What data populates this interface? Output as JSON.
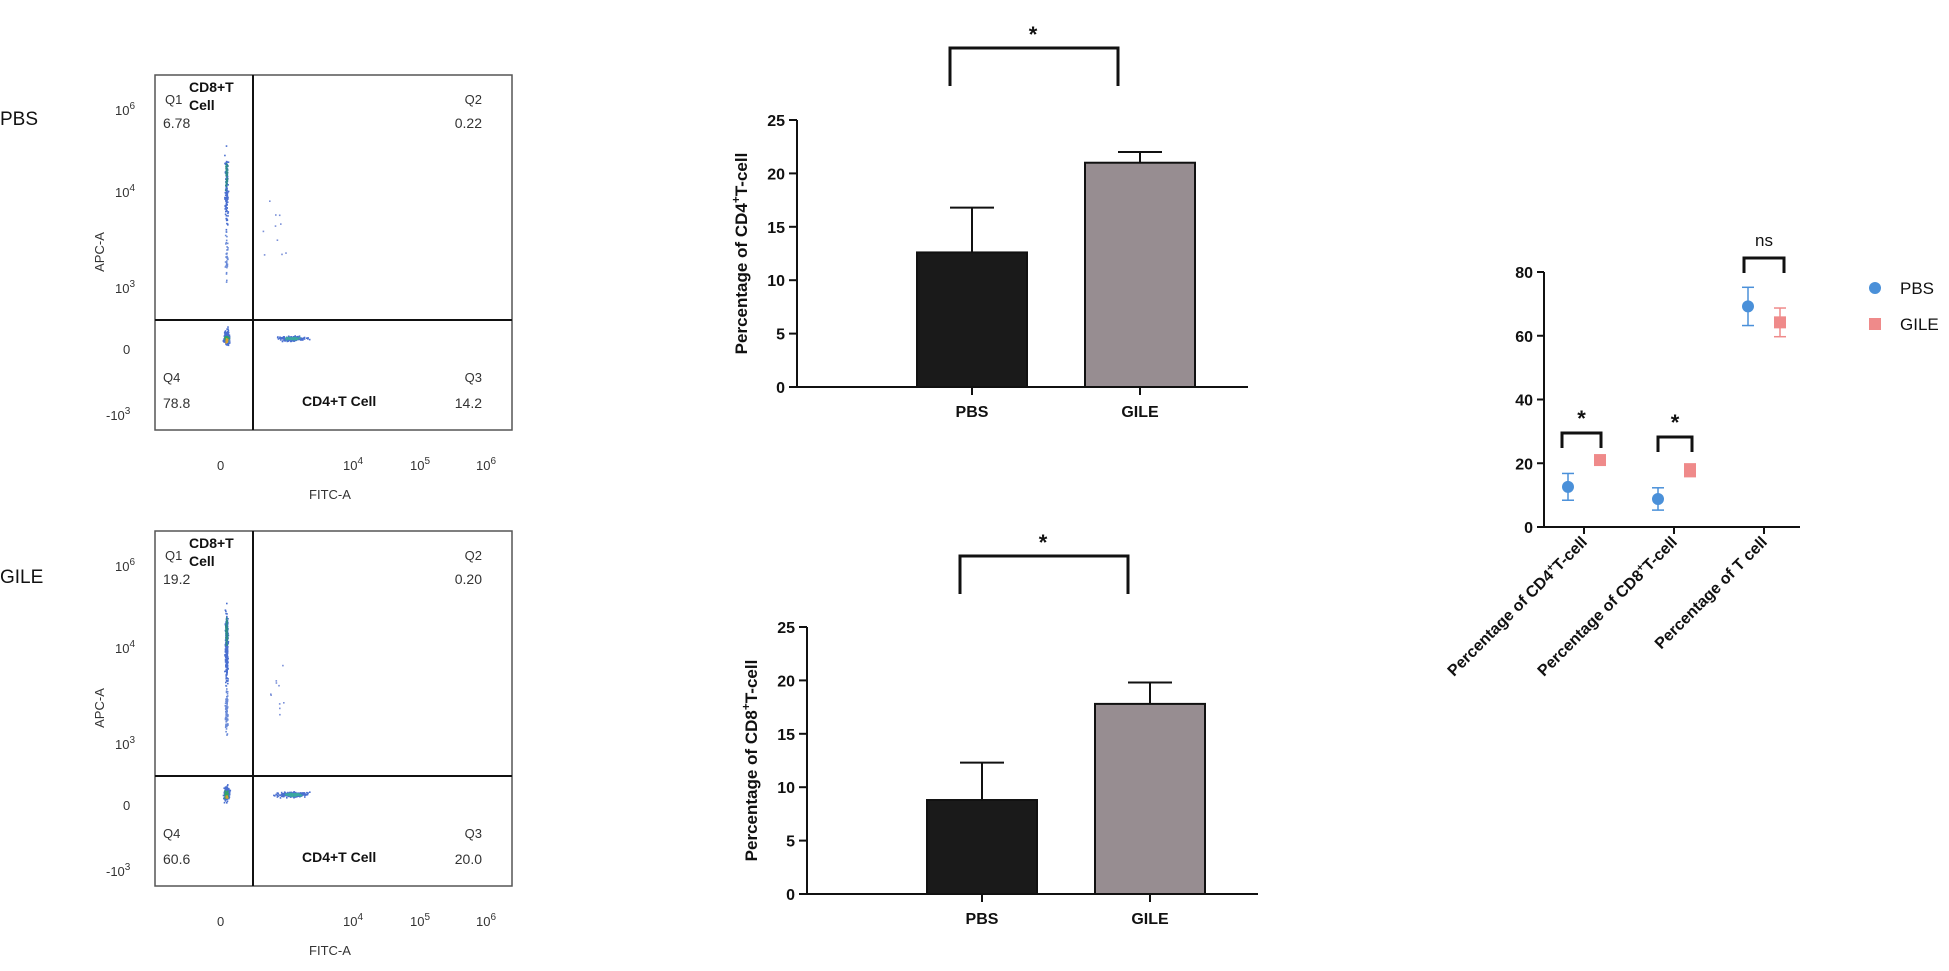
{
  "row_labels": [
    "PBS",
    "GILE"
  ],
  "flow_cytometry": [
    {
      "group": "PBS",
      "xlabel": "FITC-A",
      "ylabel": "APC-A",
      "quadrants": [
        {
          "id": "Q1",
          "value": "6.78",
          "population": "CD8+T Cell"
        },
        {
          "id": "Q2",
          "value": "0.22",
          "population": ""
        },
        {
          "id": "Q3",
          "value": "14.2",
          "population": "CD4+T Cell"
        },
        {
          "id": "Q4",
          "value": "78.8",
          "population": ""
        }
      ]
    },
    {
      "group": "GILE",
      "xlabel": "FITC-A",
      "ylabel": "APC-A",
      "quadrants": [
        {
          "id": "Q1",
          "value": "19.2",
          "population": "CD8+T Cell"
        },
        {
          "id": "Q2",
          "value": "0.20",
          "population": ""
        },
        {
          "id": "Q3",
          "value": "20.0",
          "population": "CD4+T Cell"
        },
        {
          "id": "Q4",
          "value": "60.6",
          "population": ""
        }
      ]
    }
  ],
  "chart_data": [
    {
      "type": "bar",
      "title": "",
      "categories": [
        "PBS",
        "GILE"
      ],
      "values": [
        12.6,
        21.0
      ],
      "errors": [
        4.2,
        1.0
      ],
      "ylabel": "Percentage of CD4+T-cell",
      "ylim": [
        0,
        25
      ],
      "yticks": [
        0,
        5,
        10,
        15,
        20,
        25
      ],
      "significance": "*",
      "colors": [
        "#1a1a1a",
        "#978d91"
      ]
    },
    {
      "type": "bar",
      "title": "",
      "categories": [
        "PBS",
        "GILE"
      ],
      "values": [
        8.8,
        17.8
      ],
      "errors": [
        3.5,
        2.0
      ],
      "ylabel": "Percentage of CD8+T-cell",
      "ylim": [
        0,
        25
      ],
      "yticks": [
        0,
        5,
        10,
        15,
        20,
        25
      ],
      "significance": "*",
      "colors": [
        "#1a1a1a",
        "#978d91"
      ]
    },
    {
      "type": "scatter",
      "title": "",
      "categories": [
        "Percentage of CD4+T-cell",
        "Percentage of CD8+T-cell",
        "Percentage of T cell"
      ],
      "series": [
        {
          "name": "PBS",
          "values": [
            12.6,
            8.8,
            69.2
          ],
          "errors": [
            4.2,
            3.5,
            6.0
          ],
          "color": "#4a90d9",
          "marker": "circle"
        },
        {
          "name": "GILE",
          "values": [
            21.0,
            17.8,
            64.2
          ],
          "errors": [
            1.0,
            2.0,
            4.5
          ],
          "color": "#ef8a8a",
          "marker": "square"
        }
      ],
      "ylim": [
        0,
        80
      ],
      "yticks": [
        0,
        20,
        40,
        60,
        80
      ],
      "significance": [
        "*",
        "*",
        "ns"
      ],
      "legend": "right"
    }
  ]
}
